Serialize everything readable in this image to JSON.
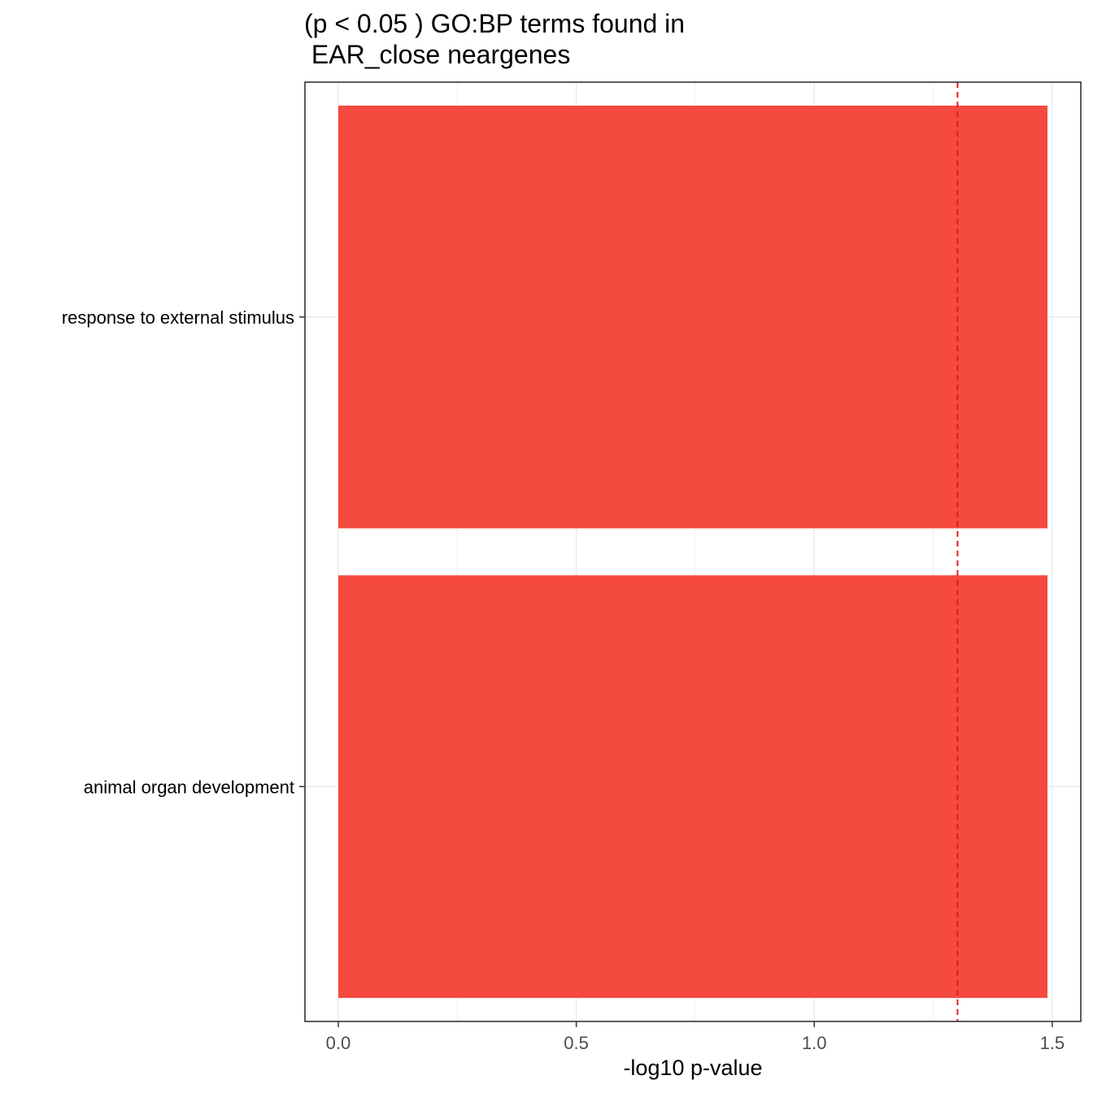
{
  "chart_data": {
    "type": "bar",
    "orientation": "horizontal",
    "title_line1": "(p < 0.05 ) GO:BP terms found in",
    "title_line2": " EAR_close neargenes",
    "xlabel": "-log10 p-value",
    "ylabel": "",
    "categories": [
      "response to external stimulus",
      "animal organ development"
    ],
    "values": [
      1.49,
      1.49
    ],
    "xlim": [
      -0.07,
      1.56
    ],
    "xticks": [
      0.0,
      0.5,
      1.0,
      1.5
    ],
    "xtick_labels": [
      "0.0",
      "0.5",
      "1.0",
      "1.5"
    ],
    "threshold": 1.301,
    "threshold_style": "dashed",
    "bar_color": "#F44A40",
    "threshold_color": "#E41A1C",
    "grid": true
  }
}
